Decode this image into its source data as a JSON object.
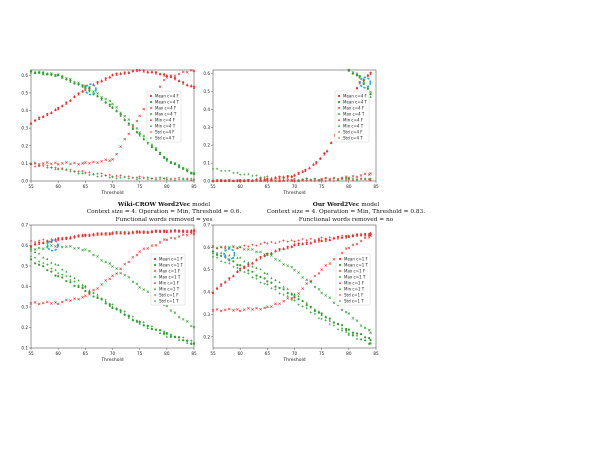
{
  "captions": [
    {
      "title": "Wiki-CROW Word2Vec",
      "suffix": " model",
      "line1": "Context size = 4.    Operation = Min, Threshold = 0.6.",
      "line2": "Functional words removed = yes"
    },
    {
      "title": "Our Word2Vec",
      "suffix": " model",
      "line1": "Context size = 4.    Operation = Min, Threshold = 0.83.",
      "line2": "Functional words removed = no"
    }
  ],
  "colors": {
    "F": "#e8342e",
    "T": "#2ca02c",
    "highlight": "#29a8e0"
  },
  "chart_data": [
    {
      "type": "scatter",
      "xlabel": "Threshold",
      "xlim": [
        55,
        85
      ],
      "ylim": [
        0,
        0.63
      ],
      "xticks": [
        55,
        60,
        65,
        70,
        75,
        80,
        85
      ],
      "yticks": [
        0.0,
        0.1,
        0.2,
        0.3,
        0.4,
        0.5,
        0.6
      ],
      "ytick_labels": [
        "0.0",
        "0.1",
        "0.2",
        "0.3",
        "0.4",
        "0.5",
        "0.6"
      ],
      "legend": [
        "Mean c=4 F",
        "Mean c=4 T",
        "Max c=4 F",
        "Max c=4 T",
        "Min c=4 F",
        "Min c=4 T",
        "Std c=4 F",
        "Std c=4 T"
      ],
      "highlight": {
        "x": 66,
        "y": 0.52
      },
      "series": [
        {
          "name": "Mean c=4 F",
          "marker": "circle",
          "group": "F",
          "x": [
            55,
            60,
            65,
            70,
            75,
            80,
            85
          ],
          "y": [
            0.33,
            0.41,
            0.52,
            0.6,
            0.63,
            0.6,
            0.53
          ]
        },
        {
          "name": "Mean c=4 T",
          "marker": "circle",
          "group": "T",
          "x": [
            55,
            60,
            65,
            70,
            75,
            80,
            85
          ],
          "y": [
            0.62,
            0.6,
            0.53,
            0.42,
            0.26,
            0.12,
            0.04
          ]
        },
        {
          "name": "Max c=4 F",
          "marker": "x",
          "group": "F",
          "x": [
            55,
            60,
            65,
            70,
            75,
            80,
            85
          ],
          "y": [
            0.1,
            0.1,
            0.1,
            0.12,
            0.37,
            0.59,
            0.63
          ]
        },
        {
          "name": "Max c=4 T",
          "marker": "x",
          "group": "T",
          "x": [
            55,
            60,
            65,
            70,
            75,
            80,
            85
          ],
          "y": [
            0.62,
            0.6,
            0.54,
            0.44,
            0.28,
            0.12,
            0.04
          ]
        },
        {
          "name": "Min c=4 F",
          "marker": "triangle",
          "group": "F",
          "x": [
            55,
            60,
            65,
            70,
            75,
            80,
            85
          ],
          "y": [
            0.33,
            0.41,
            0.52,
            0.6,
            0.63,
            0.6,
            0.53
          ]
        },
        {
          "name": "Min c=4 T",
          "marker": "triangle",
          "group": "T",
          "x": [
            55,
            60,
            65,
            70,
            75,
            80,
            85
          ],
          "y": [
            0.62,
            0.6,
            0.53,
            0.42,
            0.26,
            0.12,
            0.04
          ]
        },
        {
          "name": "Std c=4 F",
          "marker": "plus",
          "group": "F",
          "x": [
            55,
            60,
            65,
            70,
            75,
            80,
            85
          ],
          "y": [
            0.09,
            0.07,
            0.05,
            0.03,
            0.02,
            0.015,
            0.01
          ]
        },
        {
          "name": "Std c=4 T",
          "marker": "plus",
          "group": "T",
          "x": [
            55,
            60,
            65,
            70,
            75,
            80,
            85
          ],
          "y": [
            0.1,
            0.07,
            0.04,
            0.02,
            0.015,
            0.01,
            0.01
          ]
        }
      ]
    },
    {
      "type": "scatter",
      "xlabel": "Threshold",
      "xlim": [
        55,
        85
      ],
      "ylim": [
        0,
        0.62
      ],
      "xticks": [
        55,
        60,
        65,
        70,
        75,
        80,
        85
      ],
      "yticks": [
        0.0,
        0.1,
        0.2,
        0.3,
        0.4,
        0.5,
        0.6
      ],
      "ytick_labels": [
        "0.0",
        "0.1",
        "0.2",
        "0.3",
        "0.4",
        "0.5",
        "0.6"
      ],
      "legend": [
        "Mean c=4 F",
        "Mean c=4 T",
        "Max c=4 F",
        "Max c=4 T",
        "Min c=4 F",
        "Min c=4 T",
        "Std c=4 F",
        "Std c=4 T"
      ],
      "highlight": {
        "x": 83,
        "y": 0.55
      },
      "series": [
        {
          "name": "Mean c=4 F",
          "marker": "circle",
          "group": "F",
          "x": [
            55,
            60,
            65,
            70,
            72,
            74,
            76,
            78,
            80,
            82,
            84
          ],
          "y": [
            0.0,
            0.0,
            0.01,
            0.03,
            0.06,
            0.1,
            0.17,
            0.28,
            0.43,
            0.55,
            0.6
          ]
        },
        {
          "name": "Mean c=4 T",
          "marker": "circle",
          "group": "T",
          "x": [
            80,
            82,
            84
          ],
          "y": [
            0.62,
            0.58,
            0.49
          ]
        },
        {
          "name": "Max c=4 F",
          "marker": "x",
          "group": "F",
          "x": [
            55,
            60,
            65,
            70,
            75,
            80,
            84
          ],
          "y": [
            0.0,
            0.0,
            0.0,
            0.0,
            0.01,
            0.02,
            0.04
          ]
        },
        {
          "name": "Max c=4 T",
          "marker": "x",
          "group": "T",
          "x": [
            80,
            82,
            84
          ],
          "y": [
            0.62,
            0.59,
            0.5
          ]
        },
        {
          "name": "Min c=4 F",
          "marker": "triangle",
          "group": "F",
          "x": [
            55,
            60,
            65,
            70,
            72,
            74,
            76,
            78,
            80,
            82,
            84
          ],
          "y": [
            0.0,
            0.0,
            0.01,
            0.03,
            0.06,
            0.1,
            0.17,
            0.28,
            0.43,
            0.55,
            0.6
          ]
        },
        {
          "name": "Min c=4 T",
          "marker": "triangle",
          "group": "T",
          "x": [
            80,
            82,
            84
          ],
          "y": [
            0.62,
            0.58,
            0.47
          ]
        },
        {
          "name": "Std c=4 F",
          "marker": "plus",
          "group": "F",
          "x": [
            55,
            60,
            65,
            70,
            75,
            80,
            84
          ],
          "y": [
            0.0,
            0.0,
            0.0,
            0.0,
            0.0,
            0.01,
            0.01
          ]
        },
        {
          "name": "Std c=4 T",
          "marker": "plus",
          "group": "T",
          "x": [
            55,
            60,
            65,
            70,
            75,
            80,
            84
          ],
          "y": [
            0.07,
            0.04,
            0.02,
            0.01,
            0.01,
            0.01,
            0.01
          ]
        }
      ]
    },
    {
      "type": "scatter",
      "xlabel": "Threshold",
      "xlim": [
        55,
        85
      ],
      "ylim": [
        0.1,
        0.7
      ],
      "xticks": [
        55,
        60,
        65,
        70,
        75,
        80,
        85
      ],
      "yticks": [
        0.1,
        0.2,
        0.3,
        0.4,
        0.5,
        0.6,
        0.7
      ],
      "ytick_labels": [
        "0.1",
        "0.2",
        "0.3",
        "0.4",
        "0.5",
        "0.6",
        "0.7"
      ],
      "legend": [
        "Mean c=1 F",
        "Mean c=1 T",
        "Max c=1 F",
        "Max c=1 T",
        "Min c=1 F",
        "Min c=1 T",
        "Std c=1 F",
        "Std c=1 T"
      ],
      "highlight": {
        "x": 59,
        "y": 0.6
      },
      "series": [
        {
          "name": "Mean c=1 F",
          "marker": "circle",
          "group": "F",
          "x": [
            55,
            60,
            65,
            70,
            75,
            80,
            85
          ],
          "y": [
            0.6,
            0.63,
            0.65,
            0.66,
            0.665,
            0.67,
            0.67
          ]
        },
        {
          "name": "Mean c=1 T",
          "marker": "circle",
          "group": "T",
          "x": [
            55,
            60,
            65,
            70,
            75,
            80,
            85
          ],
          "y": [
            0.53,
            0.45,
            0.38,
            0.3,
            0.22,
            0.17,
            0.12
          ]
        },
        {
          "name": "Max c=1 F",
          "marker": "x",
          "group": "F",
          "x": [
            55,
            60,
            65,
            70,
            75,
            80,
            85
          ],
          "y": [
            0.32,
            0.32,
            0.35,
            0.45,
            0.57,
            0.63,
            0.66
          ]
        },
        {
          "name": "Max c=1 T",
          "marker": "x",
          "group": "T",
          "x": [
            55,
            60,
            65,
            70,
            75,
            80,
            85
          ],
          "y": [
            0.58,
            0.6,
            0.58,
            0.5,
            0.4,
            0.3,
            0.2
          ]
        },
        {
          "name": "Min c=1 F",
          "marker": "triangle",
          "group": "F",
          "x": [
            55,
            60,
            65,
            70,
            75,
            80,
            85
          ],
          "y": [
            0.6,
            0.63,
            0.65,
            0.66,
            0.665,
            0.67,
            0.67
          ]
        },
        {
          "name": "Min c=1 T",
          "marker": "triangle",
          "group": "T",
          "x": [
            55,
            60,
            65,
            70,
            75,
            80,
            85
          ],
          "y": [
            0.58,
            0.5,
            0.4,
            0.3,
            0.22,
            0.16,
            0.12
          ]
        },
        {
          "name": "Std c=1 F",
          "marker": "plus",
          "group": "F",
          "x": [
            55,
            60,
            65,
            70,
            75,
            80,
            85
          ],
          "y": [
            0.62,
            0.63,
            0.65,
            0.66,
            0.665,
            0.67,
            0.67
          ]
        },
        {
          "name": "Std c=1 T",
          "marker": "plus",
          "group": "T",
          "x": [
            55,
            60,
            65,
            70,
            75,
            80,
            85
          ],
          "y": [
            0.55,
            0.47,
            0.39,
            0.31,
            0.23,
            0.17,
            0.13
          ]
        }
      ]
    },
    {
      "type": "scatter",
      "xlabel": "Threshold",
      "xlim": [
        55,
        85
      ],
      "ylim": [
        0.15,
        0.7
      ],
      "xticks": [
        55,
        60,
        65,
        70,
        75,
        80,
        85
      ],
      "yticks": [
        0.2,
        0.3,
        0.4,
        0.5,
        0.6,
        0.7
      ],
      "ytick_labels": [
        "0.2",
        "0.3",
        "0.4",
        "0.5",
        "0.6",
        "0.7"
      ],
      "legend": [
        "Mean c=1 F",
        "Mean c=1 T",
        "Max c=1 F",
        "Max c=1 T",
        "Min c=1 F",
        "Min c=1 T",
        "Std c=1 F",
        "Std c=1 T"
      ],
      "highlight": {
        "x": 58,
        "y": 0.57
      },
      "series": [
        {
          "name": "Mean c=1 F",
          "marker": "circle",
          "group": "F",
          "x": [
            55,
            60,
            65,
            70,
            75,
            80,
            84
          ],
          "y": [
            0.4,
            0.5,
            0.57,
            0.61,
            0.63,
            0.65,
            0.66
          ]
        },
        {
          "name": "Mean c=1 T",
          "marker": "circle",
          "group": "T",
          "x": [
            55,
            60,
            65,
            70,
            75,
            80,
            84
          ],
          "y": [
            0.58,
            0.52,
            0.45,
            0.38,
            0.3,
            0.23,
            0.19
          ]
        },
        {
          "name": "Max c=1 F",
          "marker": "x",
          "group": "F",
          "x": [
            55,
            60,
            65,
            70,
            75,
            80,
            84
          ],
          "y": [
            0.32,
            0.32,
            0.33,
            0.38,
            0.5,
            0.6,
            0.65
          ]
        },
        {
          "name": "Max c=1 T",
          "marker": "x",
          "group": "T",
          "x": [
            55,
            60,
            65,
            70,
            75,
            80,
            84
          ],
          "y": [
            0.6,
            0.6,
            0.57,
            0.5,
            0.4,
            0.3,
            0.22
          ]
        },
        {
          "name": "Min c=1 F",
          "marker": "triangle",
          "group": "F",
          "x": [
            55,
            60,
            65,
            70,
            75,
            80,
            84
          ],
          "y": [
            0.4,
            0.5,
            0.57,
            0.61,
            0.63,
            0.65,
            0.66
          ]
        },
        {
          "name": "Min c=1 T",
          "marker": "triangle",
          "group": "T",
          "x": [
            55,
            60,
            65,
            70,
            75,
            80,
            84
          ],
          "y": [
            0.58,
            0.55,
            0.48,
            0.39,
            0.3,
            0.22,
            0.17
          ]
        },
        {
          "name": "Std c=1 F",
          "marker": "plus",
          "group": "F",
          "x": [
            55,
            60,
            65,
            70,
            75,
            80,
            84
          ],
          "y": [
            0.6,
            0.6,
            0.62,
            0.63,
            0.64,
            0.65,
            0.66
          ]
        },
        {
          "name": "Std c=1 T",
          "marker": "plus",
          "group": "T",
          "x": [
            55,
            60,
            65,
            70,
            75,
            80,
            84
          ],
          "y": [
            0.56,
            0.5,
            0.43,
            0.36,
            0.28,
            0.21,
            0.17
          ]
        }
      ]
    }
  ]
}
